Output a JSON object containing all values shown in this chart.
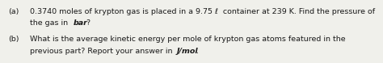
{
  "background_color": "#f0f0eb",
  "font_size": 6.8,
  "text_color": "#1a1a1a",
  "line1_label": "(a)",
  "line1_text": "0.3740 moles of krypton gas is placed in a 9.75 ℓ  container at 239 K. Find the pressure of",
  "line2_text": "the gas in ",
  "line2_italic": "bar",
  "line2_end": "?",
  "line3_label": "(b)",
  "line3_text": "What is the average kinetic energy per mole of krypton gas atoms featured in the",
  "line4_text": "previous part? Report your answer in ",
  "line4_italic": "J/mol",
  "line4_end": "."
}
